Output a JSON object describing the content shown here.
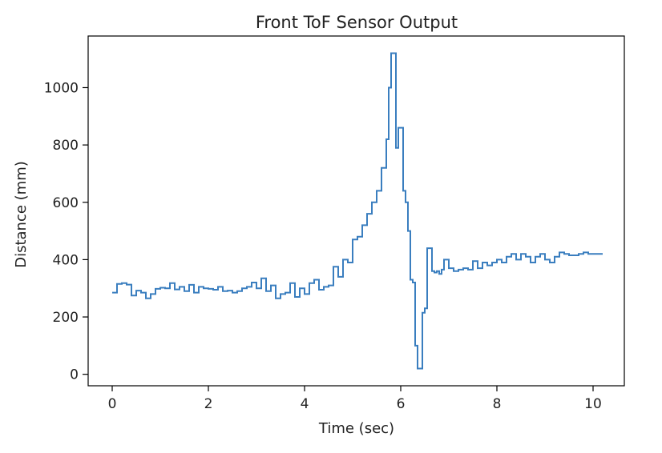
{
  "chart_data": {
    "type": "line",
    "title": "Front ToF Sensor Output",
    "xlabel": "Time (sec)",
    "ylabel": "Distance (mm)",
    "xlim": [
      -0.5,
      10.65
    ],
    "ylim": [
      -40,
      1180
    ],
    "xticks": [
      0,
      2,
      4,
      6,
      8,
      10
    ],
    "yticks": [
      0,
      200,
      400,
      600,
      800,
      1000
    ],
    "xtick_labels": [
      "0",
      "2",
      "4",
      "6",
      "8",
      "10"
    ],
    "ytick_labels": [
      "0",
      "200",
      "400",
      "600",
      "800",
      "1000"
    ],
    "grid": false,
    "line_color": "#3a7ebf",
    "series": [
      {
        "step": "post",
        "x": [
          0.0,
          0.1,
          0.2,
          0.3,
          0.4,
          0.5,
          0.6,
          0.7,
          0.8,
          0.9,
          1.0,
          1.1,
          1.2,
          1.3,
          1.4,
          1.5,
          1.6,
          1.7,
          1.8,
          1.9,
          2.0,
          2.1,
          2.2,
          2.3,
          2.4,
          2.5,
          2.6,
          2.7,
          2.8,
          2.9,
          3.0,
          3.1,
          3.2,
          3.3,
          3.4,
          3.5,
          3.6,
          3.7,
          3.8,
          3.9,
          4.0,
          4.1,
          4.2,
          4.3,
          4.4,
          4.5,
          4.6,
          4.7,
          4.8,
          4.9,
          5.0,
          5.1,
          5.2,
          5.3,
          5.4,
          5.5,
          5.6,
          5.7,
          5.75,
          5.8,
          5.85,
          5.9,
          5.95,
          6.0,
          6.05,
          6.1,
          6.15,
          6.2,
          6.25,
          6.3,
          6.35,
          6.4,
          6.45,
          6.5,
          6.55,
          6.6,
          6.65,
          6.7,
          6.75,
          6.8,
          6.85,
          6.9,
          7.0,
          7.1,
          7.2,
          7.3,
          7.4,
          7.5,
          7.6,
          7.7,
          7.8,
          7.9,
          8.0,
          8.1,
          8.2,
          8.3,
          8.4,
          8.5,
          8.6,
          8.7,
          8.8,
          8.9,
          9.0,
          9.1,
          9.2,
          9.3,
          9.4,
          9.5,
          9.6,
          9.7,
          9.8,
          9.9,
          10.0,
          10.1
        ],
        "y": [
          285,
          315,
          318,
          313,
          275,
          292,
          285,
          265,
          280,
          298,
          302,
          300,
          318,
          296,
          305,
          290,
          312,
          285,
          305,
          300,
          298,
          295,
          305,
          290,
          292,
          285,
          290,
          300,
          305,
          320,
          300,
          335,
          290,
          310,
          265,
          280,
          285,
          318,
          270,
          300,
          280,
          318,
          330,
          295,
          305,
          310,
          375,
          340,
          400,
          390,
          470,
          480,
          520,
          560,
          600,
          640,
          720,
          820,
          1000,
          1120,
          1120,
          790,
          860,
          860,
          640,
          600,
          500,
          330,
          320,
          100,
          20,
          20,
          215,
          230,
          440,
          440,
          360,
          355,
          360,
          350,
          365,
          400,
          370,
          360,
          365,
          370,
          365,
          395,
          370,
          390,
          380,
          390,
          400,
          390,
          410,
          420,
          400,
          420,
          410,
          390,
          410,
          420,
          400,
          390,
          410,
          425,
          420,
          415,
          415,
          420,
          425,
          420,
          420,
          420
        ]
      }
    ]
  }
}
